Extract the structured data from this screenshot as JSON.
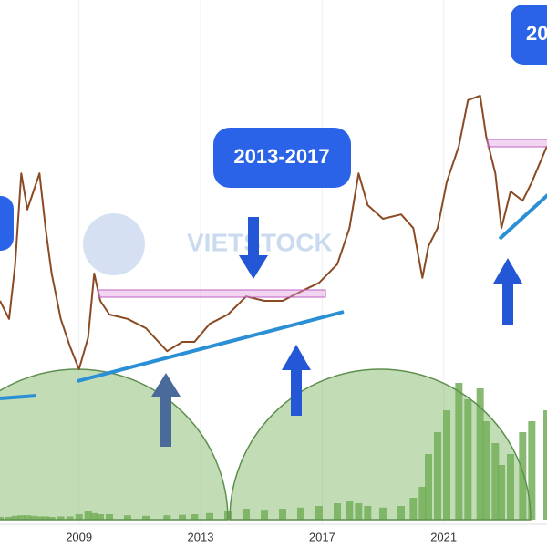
{
  "chart_data": {
    "type": "line",
    "x": [
      2006.4,
      2006.7,
      2006.9,
      2007.1,
      2007.3,
      2007.5,
      2007.7,
      2007.9,
      2008.1,
      2008.4,
      2008.7,
      2009.0,
      2009.3,
      2009.5,
      2009.7,
      2010.0,
      2010.6,
      2011.2,
      2011.9,
      2012.4,
      2012.8,
      2013.3,
      2013.9,
      2014.5,
      2015.1,
      2015.7,
      2016.3,
      2016.9,
      2017.5,
      2017.9,
      2018.2,
      2018.5,
      2019.0,
      2019.6,
      2020.0,
      2020.3,
      2020.5,
      2020.8,
      2021.1,
      2021.5,
      2021.8,
      2022.2,
      2022.4,
      2022.7,
      2022.9,
      2023.2,
      2023.6,
      2023.9,
      2024.4
    ],
    "values": [
      45,
      41.7,
      51.7,
      68.3,
      61.7,
      65,
      68.3,
      58.3,
      50,
      41.7,
      36.7,
      32.5,
      38.3,
      50,
      45,
      42.5,
      41.7,
      40,
      35.8,
      37.5,
      37.5,
      40.8,
      42.5,
      45.8,
      45,
      45,
      46.7,
      48.3,
      51.7,
      58.3,
      68.3,
      62.5,
      60,
      60.8,
      58.3,
      49.2,
      55,
      58.3,
      66.7,
      73.3,
      81.7,
      82.5,
      75,
      68.3,
      58.3,
      65,
      63.3,
      66.7,
      73.3
    ],
    "volume": [
      0.5,
      0.5,
      0.7,
      0.8,
      0.8,
      0.7,
      0.6,
      0.6,
      0.5,
      0.6,
      0.6,
      1,
      1.5,
      1.2,
      1,
      1,
      0.8,
      0.7,
      0.8,
      0.9,
      1,
      1.2,
      1.5,
      2,
      1.8,
      2,
      2.2,
      2.5,
      3,
      3.5,
      3,
      2.5,
      2.2,
      2.5,
      4,
      6,
      12,
      16,
      20,
      25,
      22,
      24,
      18,
      14,
      10,
      12,
      16,
      18,
      20
    ],
    "color": "#8a4b24",
    "volume_color": "#6aa84f",
    "xlim": [
      2006.4,
      2024.4
    ],
    "ylim": [
      0,
      100
    ],
    "xticks": [
      2009,
      2013,
      2017,
      2021
    ],
    "grid": true,
    "annotations": [
      "2013-2017",
      "20"
    ],
    "watermark": "VIETSTOCK"
  }
}
